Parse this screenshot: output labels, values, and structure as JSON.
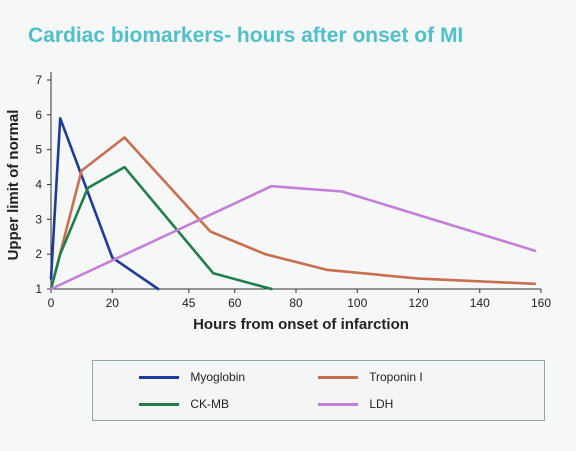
{
  "chart_data": {
    "type": "line",
    "title": "Cardiac biomarkers- hours after onset of MI",
    "xlabel": "Hours from onset of infarction",
    "ylabel": "Upper limit of normal",
    "xlim": [
      0,
      160
    ],
    "ylim": [
      1,
      7
    ],
    "x_ticks": [
      0,
      20,
      45,
      60,
      80,
      100,
      120,
      140,
      160
    ],
    "y_ticks": [
      1,
      2,
      3,
      4,
      5,
      6,
      7
    ],
    "grid": false,
    "legend": "bottom",
    "series": [
      {
        "name": "Myoglobin",
        "color": "#1f3a9e",
        "points": [
          [
            0,
            1.3
          ],
          [
            3,
            5.9
          ],
          [
            20,
            1.9
          ],
          [
            35,
            1.0
          ]
        ]
      },
      {
        "name": "Troponin I",
        "color": "#c96f4f",
        "points": [
          [
            0,
            1.0
          ],
          [
            10,
            4.4
          ],
          [
            24,
            5.35
          ],
          [
            52,
            2.65
          ],
          [
            70,
            2.0
          ],
          [
            90,
            1.55
          ],
          [
            120,
            1.3
          ],
          [
            158,
            1.15
          ]
        ]
      },
      {
        "name": "CK-MB",
        "color": "#1f7f4a",
        "points": [
          [
            0,
            1.0
          ],
          [
            3,
            2.0
          ],
          [
            12,
            3.9
          ],
          [
            24,
            4.5
          ],
          [
            53,
            1.45
          ],
          [
            72,
            1.0
          ]
        ]
      },
      {
        "name": "LDH",
        "color": "#c47fd9",
        "points": [
          [
            0,
            1.0
          ],
          [
            72,
            3.95
          ],
          [
            95,
            3.8
          ],
          [
            158,
            2.1
          ]
        ]
      }
    ]
  }
}
